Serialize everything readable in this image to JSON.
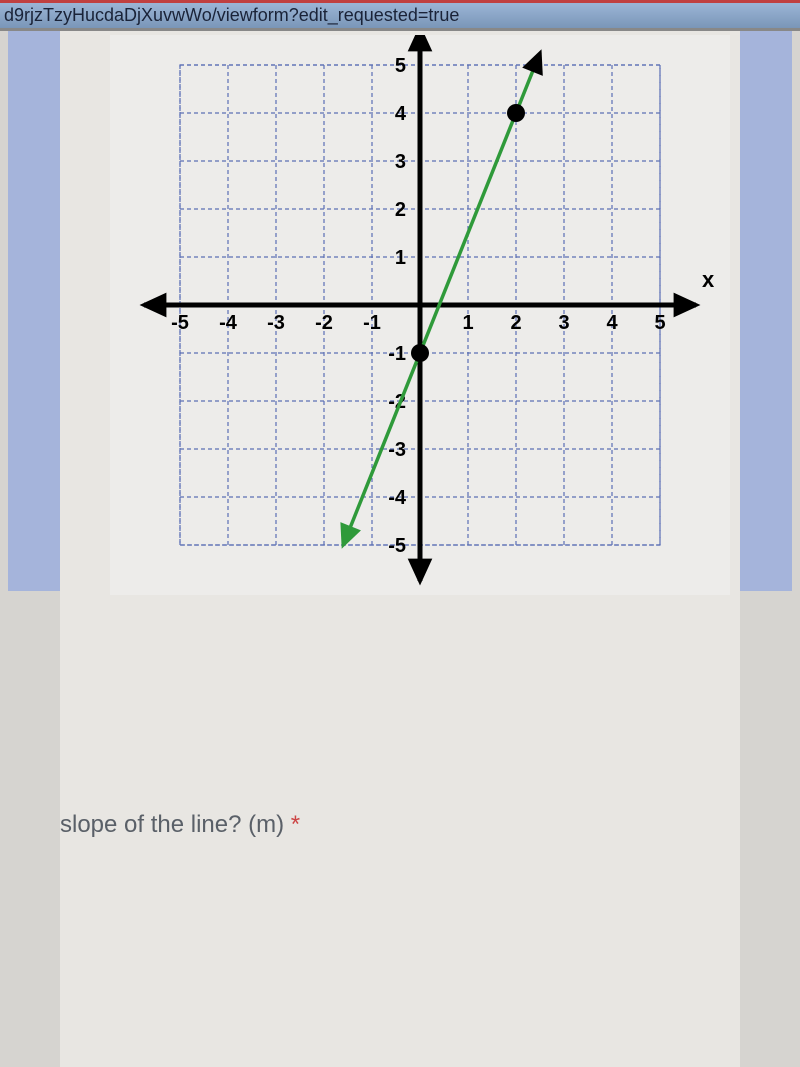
{
  "url_fragment": "d9rjzTzyHucdaDjXuvwWo/viewform?edit_requested=true",
  "question": "slope of the line? (m)",
  "question_required_marker": "*",
  "bottom_question": "",
  "chart": {
    "type": "line",
    "background_color": "#edecea",
    "grid_color": "#5b6fb5",
    "grid_stroke_width": 1.2,
    "grid_dash": "4,3",
    "axis_color": "#000000",
    "axis_stroke_width": 5,
    "arrow_size": 16,
    "axis_label_color": "#000000",
    "axis_label_fontsize": 22,
    "axis_label_fontweight": "bold",
    "x_axis_label": "x",
    "xlim": [
      -5,
      5
    ],
    "ylim": [
      -5,
      5
    ],
    "x_ticks": [
      -5,
      -4,
      -3,
      -2,
      -1,
      1,
      2,
      3,
      4,
      5
    ],
    "y_ticks": [
      -5,
      -4,
      -3,
      -2,
      -1,
      1,
      2,
      3,
      4,
      5
    ],
    "tick_label_fontsize": 20,
    "tick_label_color": "#000000",
    "line": {
      "color": "#2f9a3a",
      "stroke_width": 3.5,
      "p1": [
        0,
        -1
      ],
      "p2": [
        2,
        4
      ],
      "extend_end1": [
        -1.6,
        -5
      ],
      "extend_end2": [
        2.5,
        5.25
      ]
    },
    "points": [
      {
        "x": 0,
        "y": -1,
        "r": 9,
        "color": "#000000"
      },
      {
        "x": 2,
        "y": 4,
        "r": 9,
        "color": "#000000"
      }
    ],
    "arrow_heads": {
      "line_start": {
        "color": "#2f9a3a"
      },
      "line_end": {
        "color": "#000000"
      }
    }
  }
}
